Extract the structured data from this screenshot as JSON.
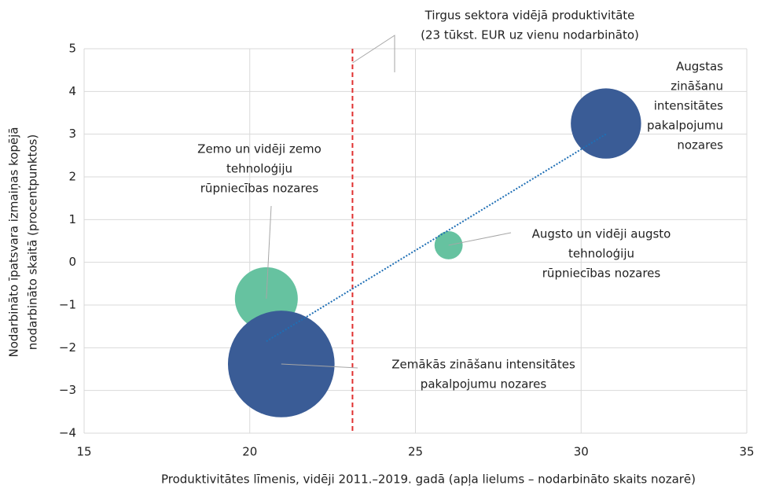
{
  "chart_data": {
    "type": "bubble",
    "x_label": "Produktivitātes līmenis, vidēji 2011.–2019. gadā (apļa lielums – nodarbināto skaits nozarē)",
    "y_label": [
      "Nodarbināto īpatsvara izmaiņas kopējā",
      "nodarbināto skaitā (procentpunktos)"
    ],
    "x": [
      20.5,
      20.95,
      26.0,
      30.75
    ],
    "y": [
      -0.85,
      -2.38,
      0.4,
      3.25
    ],
    "sizes": [
      16,
      46,
      3.2,
      20
    ],
    "colors": [
      "#66c2a0",
      "#3a5c96",
      "#66c2a0",
      "#3a5c96"
    ],
    "labels": [
      [
        "Zemo un vidēji zemo",
        "tehnoloģiju",
        "rūpniecības nozares"
      ],
      [
        "Zemākās zināšanu intensitātes",
        "pakalpojumu nozares"
      ],
      [
        "Augsto un vidēji augsto",
        "tehnoloģiju",
        "rūpniecības nozares"
      ],
      [
        "Augstas",
        "zināšanu",
        "intensitātes",
        "pakalpojumu",
        "nozares"
      ]
    ],
    "reference_line": {
      "x": 23.1,
      "color": "#e03030",
      "label": [
        "Tirgus sektora vidējā produktivitāte",
        "(23 tūkst. EUR uz vienu nodarbināto)"
      ]
    },
    "trendline": {
      "x": [
        20.5,
        30.75
      ],
      "y": [
        -1.85,
        3.0
      ],
      "color": "#1f6fb5"
    },
    "xlim": [
      15,
      35
    ],
    "xticks": [
      15,
      20,
      25,
      30,
      35
    ],
    "ylim": [
      -4,
      5
    ],
    "yticks": [
      {
        "value": -4,
        "label": "−4"
      },
      {
        "value": -3,
        "label": "−3"
      },
      {
        "value": -2,
        "label": "−2"
      },
      {
        "value": -1,
        "label": "−1"
      },
      0,
      1,
      2,
      3,
      4,
      5
    ],
    "grid": true
  }
}
